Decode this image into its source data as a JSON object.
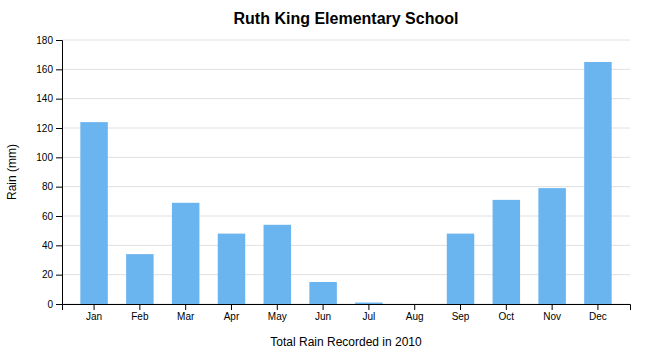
{
  "chart_data": {
    "type": "bar",
    "title": "Ruth King Elementary School",
    "xlabel": "Total Rain Recorded in 2010",
    "ylabel": "Rain (mm)",
    "categories": [
      "Jan",
      "Feb",
      "Mar",
      "Apr",
      "May",
      "Jun",
      "Jul",
      "Aug",
      "Sep",
      "Oct",
      "Nov",
      "Dec"
    ],
    "values": [
      124,
      34,
      69,
      48,
      54,
      15,
      1,
      0,
      48,
      71,
      79,
      165
    ],
    "color": "#6ab4f0",
    "ylim": [
      0,
      180
    ],
    "yticks": [
      0,
      20,
      40,
      60,
      80,
      100,
      120,
      140,
      160,
      180
    ],
    "grid": true
  }
}
